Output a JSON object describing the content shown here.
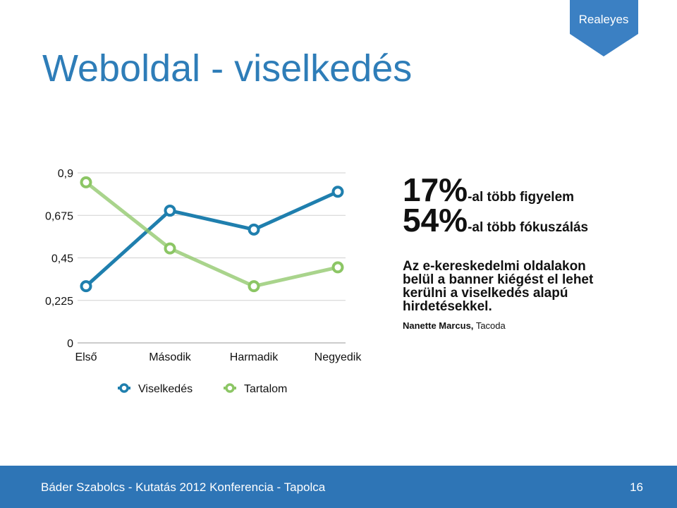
{
  "badge": "Realeyes",
  "title": "Weboldal - viselkedés",
  "stats": [
    {
      "figure": "17%",
      "text": "-al több figyelem"
    },
    {
      "figure": "54%",
      "text": "-al több fókuszálás"
    }
  ],
  "quote": [
    "Az e-kereskedelmi oldalakon",
    "belül a banner kiégést el lehet",
    "kerülni a viselkedés alapú",
    "hirdetésekkel."
  ],
  "author": {
    "name": "Nanette Marcus,",
    "company": "Tacoda"
  },
  "footer": {
    "text": "Báder Szabolcs - Kutatás 2012 Konferencia - Tapolca",
    "page": "16"
  },
  "chart_data": {
    "type": "line",
    "categories": [
      "Első",
      "Második",
      "Harmadik",
      "Negyedik"
    ],
    "series": [
      {
        "name": "Viselkedés",
        "color": "#1f7fae",
        "values": [
          0.3,
          0.7,
          0.6,
          0.8
        ]
      },
      {
        "name": "Tartalom",
        "color": "#8cc665",
        "values": [
          0.85,
          0.5,
          0.3,
          0.4
        ]
      }
    ],
    "ylim": [
      0,
      0.9
    ],
    "yticks": [
      0,
      {
        "value": 0.225,
        "label": "0,225"
      },
      {
        "value": 0.45,
        "label": "0,45"
      },
      {
        "value": 0.675,
        "label": "0,675"
      },
      {
        "value": 0.9,
        "label": "0,9"
      }
    ],
    "grid": true,
    "legend": "bottom"
  }
}
